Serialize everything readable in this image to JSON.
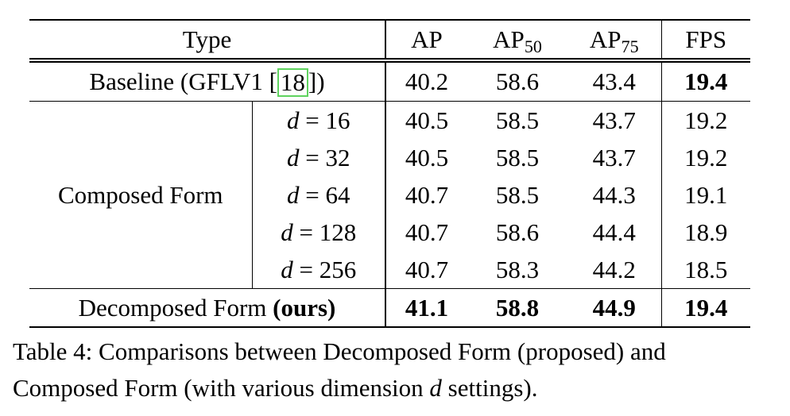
{
  "table": {
    "headers": {
      "type": "Type",
      "ap": "AP",
      "ap50_base": "AP",
      "ap50_sub": "50",
      "ap75_base": "AP",
      "ap75_sub": "75",
      "fps": "FPS"
    },
    "baseline": {
      "label_prefix": "Baseline (GFLV1 [",
      "cite": "18",
      "label_suffix": "])",
      "ap": "40.2",
      "ap50": "58.6",
      "ap75": "43.4",
      "fps": "19.4"
    },
    "composed": {
      "label": "Composed Form",
      "rows": [
        {
          "d_var": "d",
          "eq": " = ",
          "d_val": "16",
          "ap": "40.5",
          "ap50": "58.5",
          "ap75": "43.7",
          "fps": "19.2"
        },
        {
          "d_var": "d",
          "eq": " = ",
          "d_val": "32",
          "ap": "40.5",
          "ap50": "58.5",
          "ap75": "43.7",
          "fps": "19.2"
        },
        {
          "d_var": "d",
          "eq": " = ",
          "d_val": "64",
          "ap": "40.7",
          "ap50": "58.5",
          "ap75": "44.3",
          "fps": "19.1"
        },
        {
          "d_var": "d",
          "eq": " = ",
          "d_val": "128",
          "ap": "40.7",
          "ap50": "58.6",
          "ap75": "44.4",
          "fps": "18.9"
        },
        {
          "d_var": "d",
          "eq": " = ",
          "d_val": "256",
          "ap": "40.7",
          "ap50": "58.3",
          "ap75": "44.2",
          "fps": "18.5"
        }
      ]
    },
    "decomposed": {
      "label": "Decomposed Form ",
      "label_bold": "(ours)",
      "ap": "41.1",
      "ap50": "58.8",
      "ap75": "44.9",
      "fps": "19.4"
    }
  },
  "caption": {
    "line1": "Table 4: Comparisons between Decomposed Form (proposed) and",
    "line2_prefix": "Composed Form (with various dimension ",
    "line2_var": "d",
    "line2_suffix": " settings)."
  }
}
